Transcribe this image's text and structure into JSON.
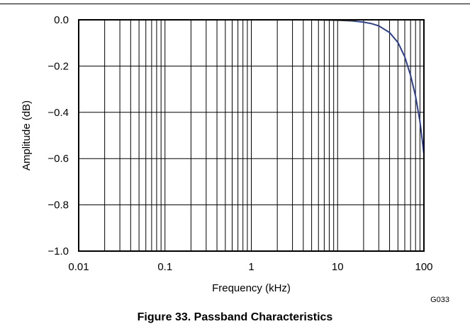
{
  "caption": "Figure 33. Passband Characteristics",
  "figure_code": "G033",
  "colors": {
    "line": "#2b3f93",
    "grid": "#000000"
  },
  "chart_data": {
    "type": "line",
    "title": "",
    "xlabel": "Frequency (kHz)",
    "ylabel": "Amplitude (dB)",
    "x_scale": "log",
    "xlim": [
      0.01,
      100
    ],
    "ylim": [
      -1.0,
      0.0
    ],
    "grid": true,
    "x_ticks": [
      0.01,
      0.1,
      1,
      10,
      100
    ],
    "x_tick_labels": [
      "0.01",
      "0.1",
      "1",
      "10",
      "100"
    ],
    "y_ticks": [
      0.0,
      -0.2,
      -0.4,
      -0.6,
      -0.8,
      -1.0
    ],
    "y_tick_labels": [
      "0.0",
      "−0.2",
      "−0.4",
      "−0.6",
      "−0.8",
      "−1.0"
    ],
    "series": [
      {
        "color": "#2b3f93",
        "x": [
          0.01,
          0.1,
          1,
          5,
          10,
          15,
          20,
          25,
          30,
          40,
          50,
          60,
          70,
          80,
          90,
          100
        ],
        "y": [
          0.0,
          0.0,
          0.0,
          0.0,
          -0.002,
          -0.005,
          -0.01,
          -0.017,
          -0.026,
          -0.055,
          -0.098,
          -0.16,
          -0.24,
          -0.33,
          -0.44,
          -0.58
        ]
      }
    ]
  }
}
